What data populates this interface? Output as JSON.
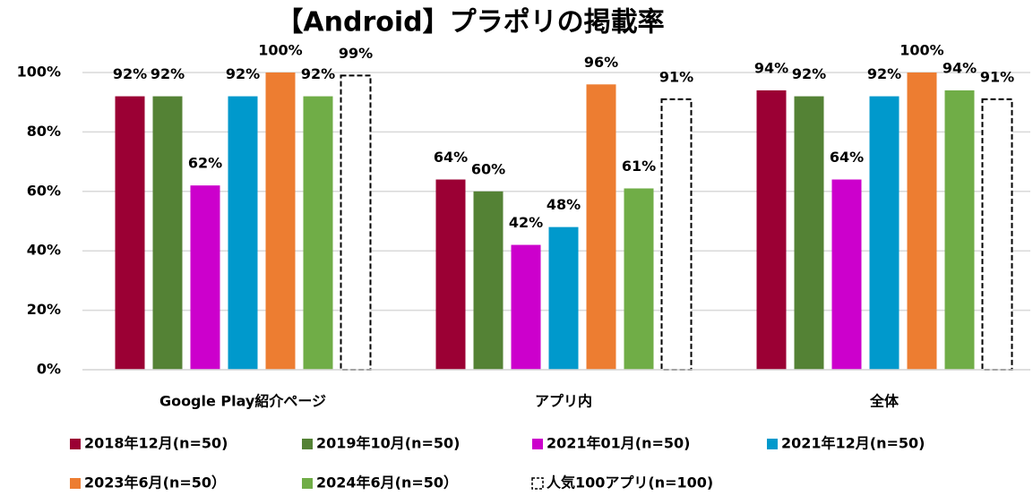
{
  "chart_data": {
    "type": "bar",
    "title": "【Android】プラポリの掲載率",
    "categories": [
      "Google Play紹介ページ",
      "アプリ内",
      "全体"
    ],
    "ylim": [
      0,
      100
    ],
    "yticks": [
      {
        "value": 0,
        "label": "0%"
      },
      {
        "value": 20,
        "label": "20%"
      },
      {
        "value": 40,
        "label": "40%"
      },
      {
        "value": 60,
        "label": "60%"
      },
      {
        "value": 80,
        "label": "80%"
      },
      {
        "value": 100,
        "label": "100%"
      }
    ],
    "grid": true,
    "legend": "bottom",
    "series": [
      {
        "name": "2018年12月(n=50)",
        "color": "#9b0034",
        "values": [
          92,
          64,
          94
        ],
        "value_labels": [
          "92%",
          "64%",
          "94%"
        ]
      },
      {
        "name": "2019年10月(n=50)",
        "color": "#548235",
        "values": [
          92,
          60,
          92
        ],
        "value_labels": [
          "92%",
          "60%",
          "92%"
        ]
      },
      {
        "name": "2021年01月(n=50)",
        "color": "#cc00cc",
        "values": [
          62,
          42,
          64
        ],
        "value_labels": [
          "62%",
          "42%",
          "64%"
        ]
      },
      {
        "name": "2021年12月(n=50)",
        "color": "#0099cc",
        "values": [
          92,
          48,
          92
        ],
        "value_labels": [
          "92%",
          "48%",
          "92%"
        ]
      },
      {
        "name": "2023年6月(n=50）",
        "color": "#ed7d31",
        "values": [
          100,
          96,
          100
        ],
        "value_labels": [
          "100%",
          "96%",
          "100%"
        ]
      },
      {
        "name": "2024年6月(n=50）",
        "color": "#70ad47",
        "values": [
          92,
          61,
          94
        ],
        "value_labels": [
          "92%",
          "61%",
          "94%"
        ]
      },
      {
        "name": "人気100アプリ(n=100)",
        "color": "#000000",
        "dashed": true,
        "values": [
          99,
          91,
          91
        ],
        "value_labels": [
          "99%",
          "91%",
          "91%"
        ]
      }
    ]
  }
}
